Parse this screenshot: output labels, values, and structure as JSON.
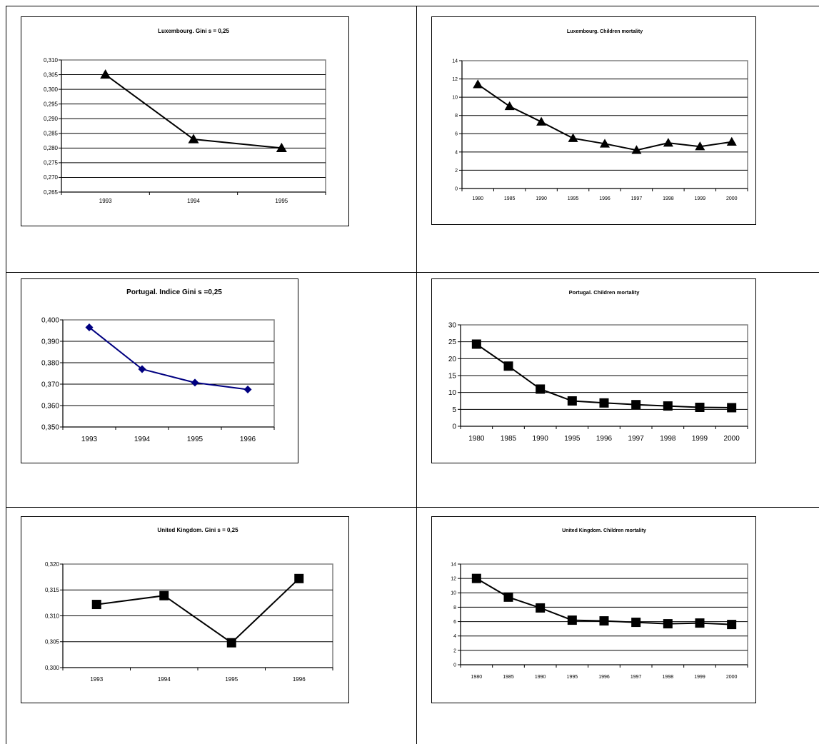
{
  "chart_data": [
    {
      "type": "line",
      "title": "Luxembourg. Gini s = 0,25",
      "categories": [
        "1993",
        "1994",
        "1995"
      ],
      "values": [
        0.305,
        0.283,
        0.28
      ],
      "ylim": [
        0.265,
        0.31
      ],
      "yticks": [
        "0,265",
        "0,270",
        "0,275",
        "0,280",
        "0,285",
        "0,290",
        "0,295",
        "0,300",
        "0,305",
        "0,310"
      ],
      "marker": "triangle",
      "line_color": "#000000",
      "marker_color": "#000000",
      "grid": true
    },
    {
      "type": "line",
      "title": "Luxembourg. Children mortality",
      "categories": [
        "1980",
        "1985",
        "1990",
        "1995",
        "1996",
        "1997",
        "1998",
        "1999",
        "2000"
      ],
      "values": [
        11.4,
        9.0,
        7.3,
        5.5,
        4.9,
        4.2,
        5.0,
        4.6,
        5.1
      ],
      "ylim": [
        0,
        14
      ],
      "yticks": [
        "0",
        "2",
        "4",
        "6",
        "8",
        "10",
        "12",
        "14"
      ],
      "marker": "triangle",
      "line_color": "#000000",
      "marker_color": "#000000",
      "grid": true
    },
    {
      "type": "line",
      "title": "Portugal. Indice Gini s =0,25",
      "categories": [
        "1993",
        "1994",
        "1995",
        "1996"
      ],
      "values": [
        0.3965,
        0.377,
        0.3707,
        0.3675
      ],
      "ylim": [
        0.35,
        0.4
      ],
      "yticks": [
        "0,350",
        "0,360",
        "0,370",
        "0,380",
        "0,390",
        "0,400"
      ],
      "marker": "diamond",
      "line_color": "#000080",
      "marker_color": "#000080",
      "grid": true
    },
    {
      "type": "line",
      "title": "Portugal. Children mortality",
      "categories": [
        "1980",
        "1985",
        "1990",
        "1995",
        "1996",
        "1997",
        "1998",
        "1999",
        "2000"
      ],
      "values": [
        24.3,
        17.8,
        11.0,
        7.5,
        6.9,
        6.4,
        6.0,
        5.6,
        5.5
      ],
      "ylim": [
        0,
        30
      ],
      "yticks": [
        "0",
        "5",
        "10",
        "15",
        "20",
        "25",
        "30"
      ],
      "marker": "square",
      "line_color": "#000000",
      "marker_color": "#000000",
      "grid": true
    },
    {
      "type": "line",
      "title": "United Kingdom. Gini s = 0,25",
      "categories": [
        "1993",
        "1994",
        "1995",
        "1996"
      ],
      "values": [
        0.3122,
        0.3139,
        0.3048,
        0.3172
      ],
      "ylim": [
        0.3,
        0.32
      ],
      "yticks": [
        "0,300",
        "0,305",
        "0,310",
        "0,315",
        "0,320"
      ],
      "marker": "square",
      "line_color": "#000000",
      "marker_color": "#000000",
      "grid": true
    },
    {
      "type": "line",
      "title": "United Kingdom. Children mortality",
      "categories": [
        "1980",
        "1985",
        "1990",
        "1995",
        "1996",
        "1997",
        "1998",
        "1999",
        "2000"
      ],
      "values": [
        12.0,
        9.4,
        7.9,
        6.2,
        6.1,
        5.9,
        5.7,
        5.8,
        5.6
      ],
      "ylim": [
        0,
        14
      ],
      "yticks": [
        "0",
        "2",
        "4",
        "6",
        "8",
        "10",
        "12",
        "14"
      ],
      "marker": "square",
      "line_color": "#000000",
      "marker_color": "#000000",
      "grid": true
    }
  ]
}
